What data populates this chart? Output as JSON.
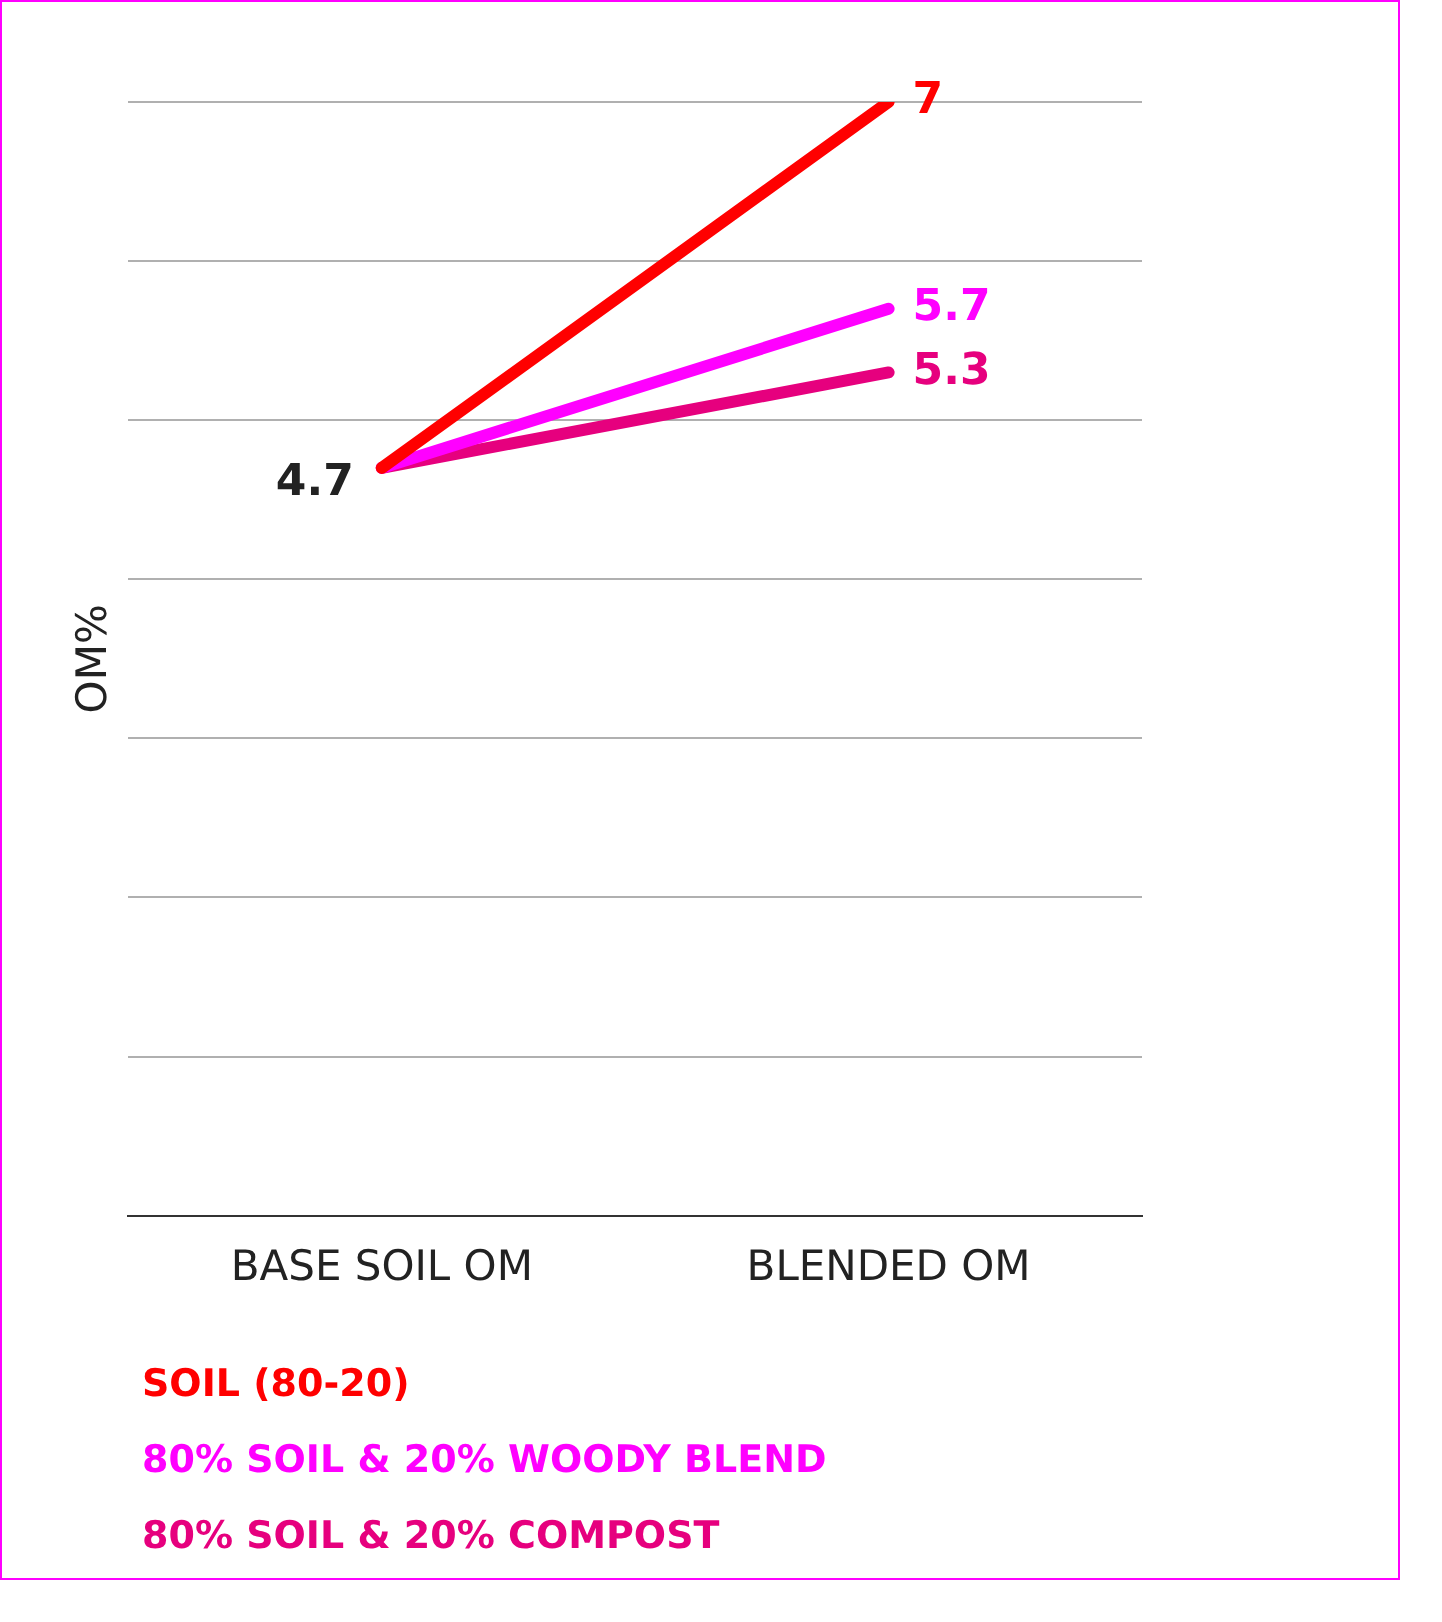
{
  "chart_data": {
    "type": "line",
    "ylabel": "OM%",
    "categories": [
      "BASE SOIL OM",
      "BLENDED OM"
    ],
    "series": [
      {
        "name": "SOIL (80-20)",
        "color": "#ff0000",
        "values": [
          4.7,
          7
        ],
        "value_labels": [
          "4.7",
          "7"
        ]
      },
      {
        "name": "80% SOIL & 20% WOODY BLEND",
        "color": "#ff00ff",
        "values": [
          4.7,
          5.7
        ],
        "value_labels": [
          null,
          "5.7"
        ]
      },
      {
        "name": "80% SOIL & 20% COMPOST",
        "color": "#e6007e",
        "values": [
          4.7,
          5.3
        ],
        "value_labels": [
          null,
          "5.3"
        ]
      }
    ],
    "ylim": [
      0,
      7
    ],
    "yticks": [
      0,
      1,
      2,
      3,
      4,
      5,
      6,
      7
    ],
    "tick_labels": "x",
    "grid": "y",
    "legend": "bottom",
    "marker": "none",
    "line_style": "solid"
  }
}
